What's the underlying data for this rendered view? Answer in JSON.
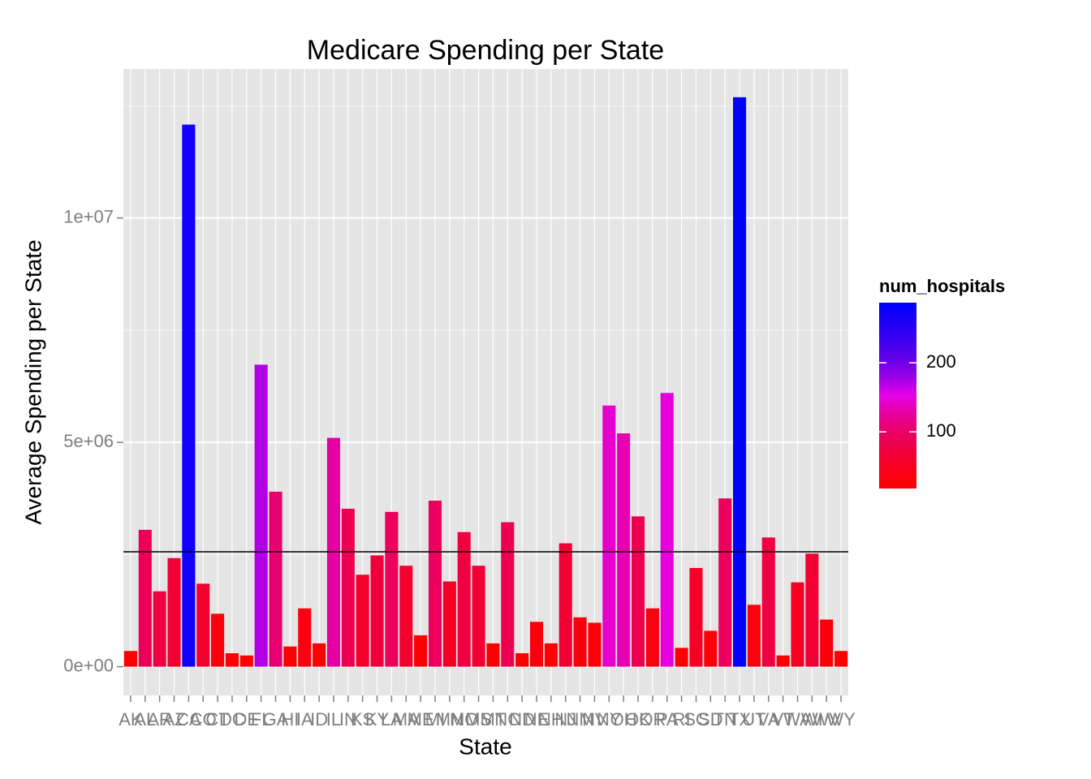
{
  "chart_data": {
    "type": "bar",
    "title": "Medicare Spending per State",
    "x_label": "State",
    "y_label": "Average Spending per State",
    "categories": [
      "AK",
      "AL",
      "AR",
      "AZ",
      "CA",
      "CO",
      "CT",
      "DC",
      "DE",
      "FL",
      "GA",
      "HI",
      "IA",
      "ID",
      "IL",
      "IN",
      "KS",
      "KY",
      "LA",
      "MA",
      "ME",
      "MI",
      "MN",
      "MO",
      "MS",
      "MT",
      "NC",
      "ND",
      "NE",
      "NH",
      "NJ",
      "NM",
      "NV",
      "NY",
      "OH",
      "OK",
      "OR",
      "PA",
      "RI",
      "SC",
      "SD",
      "TN",
      "TX",
      "UT",
      "VA",
      "VT",
      "WA",
      "WI",
      "WV",
      "WY"
    ],
    "values": [
      350000,
      3050000,
      1680000,
      2420000,
      12080000,
      1850000,
      1180000,
      300000,
      250000,
      6730000,
      3900000,
      450000,
      1300000,
      520000,
      5100000,
      3520000,
      2050000,
      2480000,
      3450000,
      2250000,
      700000,
      3700000,
      1900000,
      3000000,
      2250000,
      520000,
      3220000,
      300000,
      1000000,
      520000,
      2750000,
      1100000,
      980000,
      5820000,
      5200000,
      3350000,
      1300000,
      6100000,
      420000,
      2200000,
      800000,
      3750000,
      12690000,
      1380000,
      2880000,
      250000,
      1880000,
      2520000,
      1050000,
      350000
    ],
    "num_hospitals": [
      20,
      90,
      75,
      65,
      270,
      60,
      30,
      20,
      20,
      170,
      105,
      20,
      35,
      20,
      130,
      85,
      60,
      70,
      95,
      60,
      20,
      95,
      50,
      75,
      65,
      20,
      85,
      20,
      30,
      20,
      65,
      30,
      25,
      145,
      135,
      85,
      35,
      150,
      20,
      55,
      25,
      95,
      287,
      35,
      75,
      18,
      50,
      65,
      30,
      18
    ],
    "hline": 2560000,
    "ylim": [
      -640000,
      13320000
    ],
    "yticks": [
      {
        "value": 0,
        "label": "0e+00"
      },
      {
        "value": 5000000,
        "label": "5e+06"
      },
      {
        "value": 10000000,
        "label": "1e+07"
      }
    ],
    "grid": true,
    "legend": {
      "title": "num_hospitals",
      "position": "right",
      "low_color": "#ff0000",
      "high_color": "#0000ff",
      "lim": [
        18,
        287
      ],
      "ticks": [
        100,
        200
      ]
    }
  }
}
